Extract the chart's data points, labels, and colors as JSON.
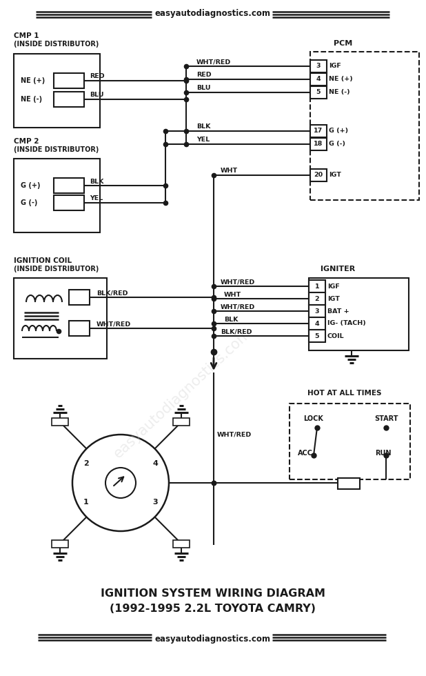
{
  "website": "easyautodiagnostics.com",
  "title_line1": "IGNITION SYSTEM WIRING DIAGRAM",
  "title_line2": "(1992-1995 2.2L TOYOTA CAMRY)",
  "bg_color": "#ffffff",
  "lc": "#1a1a1a",
  "tc": "#1a1a1a",
  "watermark_color": "#cccccc",
  "pcm_pins": [
    [
      3,
      "IGF",
      96
    ],
    [
      4,
      "NE (+)",
      115
    ],
    [
      5,
      "NE (-)",
      134
    ],
    [
      17,
      "G (+)",
      190
    ],
    [
      18,
      "G (-)",
      209
    ],
    [
      20,
      "IGT",
      254
    ]
  ],
  "igniter_pins": [
    [
      1,
      "IGF",
      415
    ],
    [
      2,
      "IGT",
      433
    ],
    [
      3,
      "BAT +",
      451
    ],
    [
      4,
      "IG- (TACH)",
      469
    ],
    [
      5,
      "COIL",
      487
    ]
  ]
}
